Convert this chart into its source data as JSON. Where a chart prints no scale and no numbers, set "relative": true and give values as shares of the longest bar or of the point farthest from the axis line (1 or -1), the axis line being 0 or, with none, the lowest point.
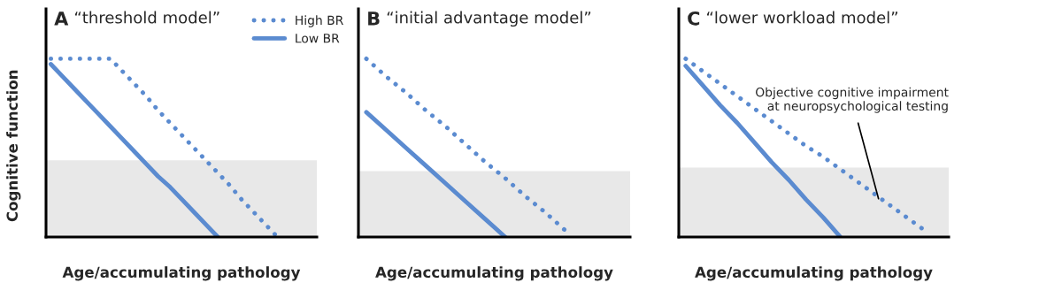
{
  "chart_data": [
    {
      "type": "line",
      "title": "A “threshold model”",
      "xlabel": "Age/accumulating pathology",
      "ylabel": "Cognitive function",
      "relative": true,
      "legend": "top right",
      "categories": [
        null,
        null,
        null,
        null,
        null,
        null,
        null,
        null,
        null,
        null,
        null,
        null,
        null,
        null,
        null,
        null,
        null,
        null,
        null,
        null,
        null,
        null,
        null
      ],
      "series": [
        {
          "name": "High BR",
          "color": "#5b8bd0",
          "line_style": "dotted",
          "values": [
            1,
            1,
            1,
            1,
            1,
            1,
            0.93,
            0.86,
            0.79,
            0.71,
            0.64,
            0.57,
            0.5,
            0.43,
            0.36,
            0.29,
            0.21,
            0.14,
            0.07,
            0,
            null,
            null,
            null
          ]
        },
        {
          "name": "Low BR",
          "color": "#5b8bd0",
          "line_style": "solid",
          "values": [
            0.97,
            0.9,
            0.83,
            0.76,
            0.69,
            0.62,
            0.55,
            0.48,
            0.41,
            0.34,
            0.28,
            0.21,
            0.14,
            0.07,
            0,
            null,
            null,
            null,
            null,
            null,
            null,
            null,
            null
          ]
        }
      ],
      "bands": [
        {
          "axis": "y",
          "from": 0,
          "to": 0.43,
          "color": "#e8e8e8"
        }
      ]
    },
    {
      "type": "line",
      "title": "B “initial advantage model”",
      "xlabel": "Age/accumulating pathology",
      "relative": true,
      "categories": [
        null,
        null,
        null,
        null,
        null,
        null,
        null,
        null,
        null,
        null,
        null,
        null,
        null,
        null
      ],
      "series": [
        {
          "color": "#5b8bd0",
          "line_style": "dotted",
          "values": [
            1,
            0.9,
            0.81,
            0.71,
            0.62,
            0.52,
            0.42,
            0.33,
            0.23,
            0.14,
            0.04,
            null,
            null,
            null
          ]
        },
        {
          "color": "#5b8bd0",
          "line_style": "solid",
          "values": [
            0.7,
            0.6,
            0.5,
            0.4,
            0.3,
            0.2,
            0.1,
            0,
            null,
            null,
            null,
            null,
            null,
            null
          ]
        }
      ],
      "bands": [
        {
          "axis": "y",
          "from": 0,
          "to": 0.37,
          "color": "#e8e8e8"
        }
      ]
    },
    {
      "type": "line",
      "title": "C “lower workload model”",
      "xlabel": "Age/accumulating pathology",
      "relative": true,
      "categories": [
        null,
        null,
        null,
        null,
        null,
        null,
        null,
        null,
        null,
        null,
        null,
        null,
        null,
        null,
        null,
        null
      ],
      "series": [
        {
          "color": "#5b8bd0",
          "line_style": "dotted",
          "values": [
            1,
            0.93,
            0.86,
            0.79,
            0.72,
            0.65,
            0.58,
            0.51,
            0.45,
            0.38,
            0.31,
            0.24,
            0.17,
            0.1,
            0.03,
            null
          ]
        },
        {
          "color": "#5b8bd0",
          "line_style": "solid",
          "values": [
            0.96,
            0.85,
            0.74,
            0.64,
            0.53,
            0.42,
            0.32,
            0.21,
            0.11,
            0,
            null,
            null,
            null,
            null,
            null,
            null
          ]
        }
      ],
      "bands": [
        {
          "axis": "y",
          "from": 0,
          "to": 0.39,
          "color": "#e8e8e8",
          "label": "Objective cognitive impairment\nat neuropsychological testing"
        }
      ]
    }
  ]
}
